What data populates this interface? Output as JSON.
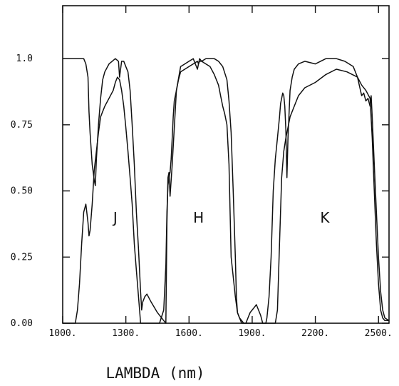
{
  "chart_data": {
    "type": "line",
    "xlabel": "LAMBDA (nm)",
    "ylabel": "",
    "title": "",
    "xlim": [
      1000,
      2550
    ],
    "ylim": [
      0,
      1.2
    ],
    "x_ticks": [
      {
        "value": 1000,
        "label": "1000."
      },
      {
        "value": 1300,
        "label": "1300."
      },
      {
        "value": 1600,
        "label": "1600."
      },
      {
        "value": 1900,
        "label": "1900."
      },
      {
        "value": 2200,
        "label": "2200."
      },
      {
        "value": 2500,
        "label": "2500."
      }
    ],
    "y_ticks": [
      {
        "value": 0,
        "label": "0.00"
      },
      {
        "value": 0.25,
        "label": "0.25"
      },
      {
        "value": 0.5,
        "label": "0.50"
      },
      {
        "value": 0.75,
        "label": "0.75"
      },
      {
        "value": 1.0,
        "label": "1.0"
      }
    ],
    "grid": false,
    "annotations": [
      {
        "text": "J",
        "x": 1250,
        "y": 0.38
      },
      {
        "text": "H",
        "x": 1645,
        "y": 0.38
      },
      {
        "text": "K",
        "x": 2245,
        "y": 0.38
      }
    ],
    "series": [
      {
        "x": [
          1000,
          1100,
          1110,
          1120,
          1125,
          1130,
          1140,
          1150,
          1155,
          1160,
          1170,
          1180,
          1190,
          1200,
          1220,
          1250,
          1265,
          1270,
          1280,
          1290,
          1300,
          1310,
          1320,
          1330,
          1340,
          1350,
          1360,
          1370,
          1375,
          1380,
          1390,
          1400,
          1420,
          1450,
          1480,
          1490,
          1495,
          1500,
          1505,
          1510,
          1520,
          1540,
          1560,
          1580,
          1600,
          1620,
          1640,
          1650,
          1660,
          1680,
          1700,
          1720,
          1740,
          1760,
          1780,
          1790,
          1800,
          1810,
          1820,
          1825,
          1830,
          1840,
          1850,
          1860,
          1870,
          1880,
          1890,
          1900,
          1910,
          1920,
          1930,
          1940,
          1950,
          1960,
          1965,
          1970,
          1980,
          1990,
          2000,
          2010,
          2020,
          2030,
          2035,
          2040,
          2045,
          2050,
          2055,
          2060,
          2065,
          2070,
          2080,
          2090,
          2100,
          2120,
          2150,
          2200,
          2250,
          2300,
          2340,
          2380,
          2400,
          2420,
          2430,
          2440,
          2450,
          2460,
          2465,
          2470,
          2480,
          2490,
          2500,
          2510,
          2520,
          2530,
          2550
        ],
        "values": [
          1.0,
          1.0,
          0.98,
          0.93,
          0.8,
          0.72,
          0.6,
          0.54,
          0.52,
          0.62,
          0.75,
          0.85,
          0.92,
          0.95,
          0.98,
          1.0,
          0.99,
          0.93,
          0.99,
          0.99,
          0.97,
          0.95,
          0.88,
          0.75,
          0.6,
          0.42,
          0.28,
          0.12,
          0.05,
          0.08,
          0.1,
          0.11,
          0.08,
          0.04,
          0.01,
          0.0,
          0.38,
          0.55,
          0.57,
          0.48,
          0.6,
          0.88,
          0.97,
          0.98,
          0.99,
          1.0,
          0.96,
          1.0,
          0.99,
          1.0,
          1.0,
          1.0,
          0.99,
          0.97,
          0.92,
          0.84,
          0.72,
          0.5,
          0.25,
          0.1,
          0.04,
          0.02,
          0.01,
          0.0,
          0.0,
          0.02,
          0.04,
          0.05,
          0.06,
          0.07,
          0.05,
          0.03,
          0.0,
          0.0,
          0.0,
          0.02,
          0.1,
          0.25,
          0.5,
          0.62,
          0.7,
          0.78,
          0.83,
          0.85,
          0.87,
          0.86,
          0.82,
          0.73,
          0.55,
          0.7,
          0.88,
          0.93,
          0.96,
          0.98,
          0.99,
          0.98,
          1.0,
          1.0,
          0.99,
          0.97,
          0.93,
          0.86,
          0.87,
          0.84,
          0.85,
          0.82,
          0.86,
          0.78,
          0.6,
          0.42,
          0.25,
          0.12,
          0.05,
          0.02,
          0.01
        ]
      },
      {
        "x": [
          1000,
          1050,
          1060,
          1070,
          1080,
          1090,
          1100,
          1110,
          1120,
          1125,
          1130,
          1140,
          1150,
          1160,
          1170,
          1180,
          1190,
          1200,
          1220,
          1240,
          1250,
          1260,
          1270,
          1280,
          1290,
          1300,
          1310,
          1320,
          1330,
          1340,
          1350,
          1360,
          1365,
          1370,
          1375,
          1380,
          1385,
          1390,
          1400,
          1420,
          1440,
          1460,
          1480,
          1490,
          1495,
          1500,
          1505,
          1510,
          1515,
          1520,
          1525,
          1530,
          1540,
          1550,
          1560,
          1580,
          1600,
          1620,
          1640,
          1645,
          1650,
          1660,
          1680,
          1700,
          1720,
          1740,
          1750,
          1760,
          1770,
          1780,
          1790,
          1800,
          1820,
          1830,
          1840,
          1850,
          1860,
          1870,
          1880,
          1890,
          1900,
          1905,
          1910,
          1915,
          1920,
          1930,
          1940,
          1950,
          1960,
          1970,
          1980,
          1990,
          2000,
          2010,
          2020,
          2030,
          2040,
          2050,
          2060,
          2070,
          2080,
          2100,
          2120,
          2150,
          2200,
          2250,
          2300,
          2350,
          2400,
          2420,
          2440,
          2460,
          2470,
          2480,
          2490,
          2500,
          2510,
          2520,
          2530,
          2540,
          2550
        ],
        "values": [
          0.0,
          0.0,
          0.0,
          0.05,
          0.15,
          0.3,
          0.42,
          0.45,
          0.38,
          0.33,
          0.35,
          0.45,
          0.58,
          0.65,
          0.72,
          0.78,
          0.8,
          0.82,
          0.85,
          0.88,
          0.91,
          0.93,
          0.92,
          0.88,
          0.82,
          0.74,
          0.65,
          0.55,
          0.45,
          0.3,
          0.2,
          0.1,
          0.05,
          0.0,
          0.0,
          0.0,
          0.0,
          0.0,
          0.0,
          0.0,
          0.0,
          0.0,
          0.05,
          0.22,
          0.42,
          0.52,
          0.55,
          0.57,
          0.62,
          0.7,
          0.78,
          0.84,
          0.88,
          0.92,
          0.95,
          0.96,
          0.97,
          0.98,
          0.99,
          0.98,
          0.99,
          0.99,
          0.98,
          0.97,
          0.94,
          0.9,
          0.86,
          0.82,
          0.79,
          0.75,
          0.6,
          0.25,
          0.1,
          0.04,
          0.02,
          0.0,
          0.0,
          0.0,
          0.0,
          0.0,
          0.0,
          0.0,
          0.0,
          0.0,
          0.0,
          0.0,
          0.0,
          0.0,
          0.0,
          0.0,
          0.0,
          0.0,
          0.0,
          0.0,
          0.05,
          0.3,
          0.55,
          0.65,
          0.7,
          0.74,
          0.78,
          0.82,
          0.86,
          0.89,
          0.91,
          0.94,
          0.96,
          0.95,
          0.93,
          0.9,
          0.88,
          0.85,
          0.7,
          0.5,
          0.3,
          0.15,
          0.05,
          0.02,
          0.01,
          0.01,
          0.01
        ]
      }
    ]
  }
}
